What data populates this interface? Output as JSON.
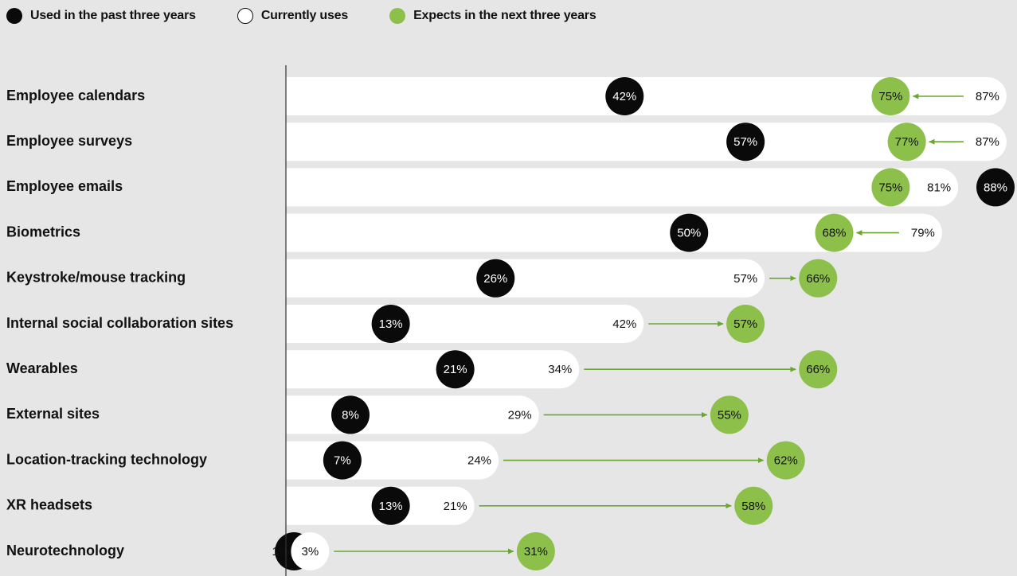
{
  "legend": {
    "past_label": "Used in the past three years",
    "current_label": "Currently uses",
    "next_label": "Expects in the next three years"
  },
  "colors": {
    "background": "#e6e6e6",
    "bar": "#ffffff",
    "past": "#0a0a0a",
    "current": "#ffffff",
    "next": "#8cc04b",
    "arrow": "#6aa632",
    "text": "#111111"
  },
  "chart_data": {
    "type": "dot-plot",
    "title": "",
    "xlabel": "",
    "ylabel": "",
    "xlim": [
      0,
      100
    ],
    "grid": false,
    "legend_position": "top-left",
    "categories": [
      "Employee calendars",
      "Employee surveys",
      "Employee emails",
      "Biometrics",
      "Keystroke/mouse tracking",
      "Internal social collaboration sites",
      "Wearables",
      "External sites",
      "Location-tracking technology",
      "XR headsets",
      "Neurotechnology"
    ],
    "series": [
      {
        "name": "Used in the past three years",
        "values": [
          42,
          57,
          88,
          50,
          26,
          13,
          21,
          8,
          7,
          13,
          1
        ]
      },
      {
        "name": "Currently uses",
        "values": [
          87,
          87,
          81,
          79,
          57,
          42,
          34,
          29,
          24,
          21,
          3
        ]
      },
      {
        "name": "Expects in the next three years",
        "values": [
          75,
          77,
          75,
          68,
          66,
          57,
          66,
          55,
          62,
          58,
          31
        ]
      }
    ],
    "value_suffix": "%"
  }
}
